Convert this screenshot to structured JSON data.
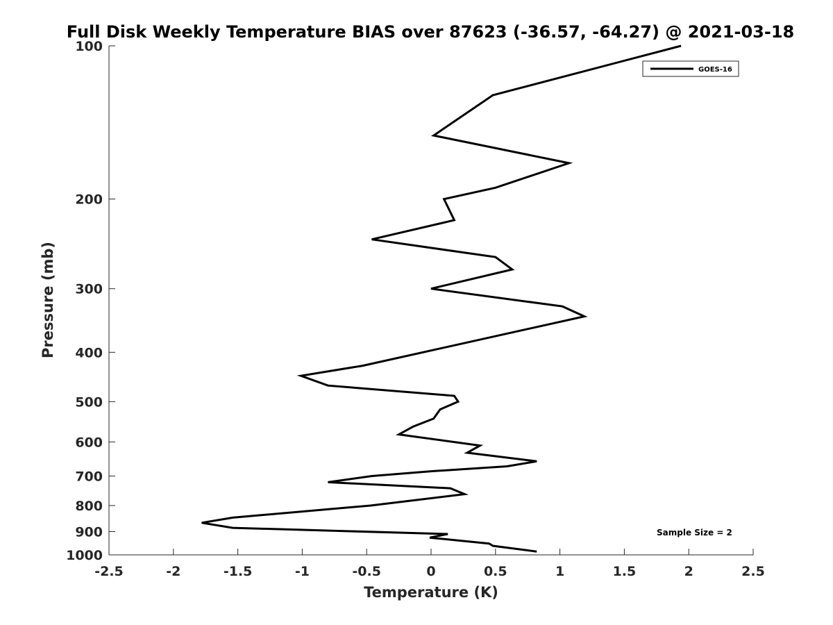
{
  "chart_data": {
    "type": "line",
    "title": "Full Disk Weekly Temperature BIAS over 87623 (-36.57, -64.27) @ 2021-03-18",
    "xlabel": "Temperature (K)",
    "ylabel": "Pressure (mb)",
    "xlim": [
      -2.5,
      2.5
    ],
    "ylim": [
      100,
      1000
    ],
    "y_scale": "log",
    "y_reversed": true,
    "x_ticks": [
      -2.5,
      -2,
      -1.5,
      -1,
      -0.5,
      0,
      0.5,
      1,
      1.5,
      2,
      2.5
    ],
    "x_tick_labels": [
      "-2.5",
      "-2",
      "-1.5",
      "-1",
      "-0.5",
      "0",
      "0.5",
      "1",
      "1.5",
      "2",
      "2.5"
    ],
    "y_ticks": [
      100,
      200,
      300,
      400,
      500,
      600,
      700,
      800,
      900,
      1000
    ],
    "y_tick_labels": [
      "100",
      "200",
      "300",
      "400",
      "500",
      "600",
      "700",
      "800",
      "900",
      "1000"
    ],
    "grid": false,
    "legend": {
      "placement": "top-right",
      "entries": [
        "GOES-16"
      ]
    },
    "annotation": "Sample Size = 2",
    "series": [
      {
        "name": "GOES-16",
        "color": "#000000",
        "points": [
          {
            "x": 1.94,
            "p": 100
          },
          {
            "x": 0.48,
            "p": 125
          },
          {
            "x": 0.02,
            "p": 150
          },
          {
            "x": 1.07,
            "p": 170
          },
          {
            "x": 0.5,
            "p": 190
          },
          {
            "x": 0.1,
            "p": 200
          },
          {
            "x": 0.18,
            "p": 220
          },
          {
            "x": -0.46,
            "p": 240
          },
          {
            "x": 0.5,
            "p": 260
          },
          {
            "x": 0.63,
            "p": 275
          },
          {
            "x": 0.0,
            "p": 300
          },
          {
            "x": 1.02,
            "p": 325
          },
          {
            "x": 1.19,
            "p": 340
          },
          {
            "x": -0.53,
            "p": 425
          },
          {
            "x": -1.01,
            "p": 445
          },
          {
            "x": -0.8,
            "p": 465
          },
          {
            "x": 0.18,
            "p": 487
          },
          {
            "x": 0.21,
            "p": 500
          },
          {
            "x": 0.07,
            "p": 518
          },
          {
            "x": 0.02,
            "p": 540
          },
          {
            "x": -0.14,
            "p": 560
          },
          {
            "x": -0.25,
            "p": 580
          },
          {
            "x": 0.38,
            "p": 610
          },
          {
            "x": 0.28,
            "p": 630
          },
          {
            "x": 0.82,
            "p": 655
          },
          {
            "x": 0.59,
            "p": 670
          },
          {
            "x": 0.0,
            "p": 685
          },
          {
            "x": -0.46,
            "p": 700
          },
          {
            "x": -0.8,
            "p": 720
          },
          {
            "x": 0.15,
            "p": 740
          },
          {
            "x": 0.26,
            "p": 760
          },
          {
            "x": -0.47,
            "p": 800
          },
          {
            "x": -1.54,
            "p": 845
          },
          {
            "x": -1.78,
            "p": 865
          },
          {
            "x": -1.54,
            "p": 885
          },
          {
            "x": 0.13,
            "p": 910
          },
          {
            "x": -0.01,
            "p": 925
          },
          {
            "x": 0.45,
            "p": 950
          },
          {
            "x": 0.48,
            "p": 960
          },
          {
            "x": 0.82,
            "p": 985
          }
        ]
      }
    ]
  }
}
